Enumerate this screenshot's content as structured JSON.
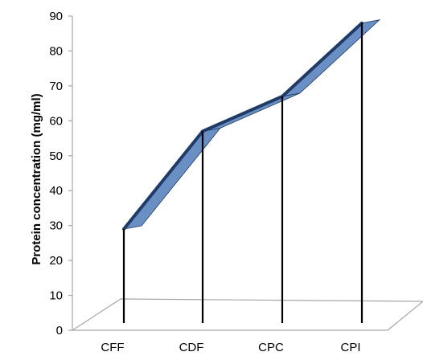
{
  "chart_data": {
    "type": "line",
    "view": "3d",
    "title": "",
    "xlabel": "",
    "ylabel": "Protein concentration (mg/ml)",
    "categories": [
      "CFF",
      "CDF",
      "CPC",
      "CPI"
    ],
    "series": [
      {
        "values": [
          29,
          57,
          67,
          88
        ]
      }
    ],
    "ylim": [
      0,
      90
    ],
    "yticks": [
      0,
      10,
      20,
      30,
      40,
      50,
      60,
      70,
      80,
      90
    ],
    "grid": false,
    "legend": "none",
    "colors": {
      "ribbon_front": "#1f3b66",
      "ribbon_top": "#6a8fc4",
      "drop_lines": "#000000",
      "floor": "#a6a6a6",
      "axis": "#a6a6a6"
    }
  }
}
